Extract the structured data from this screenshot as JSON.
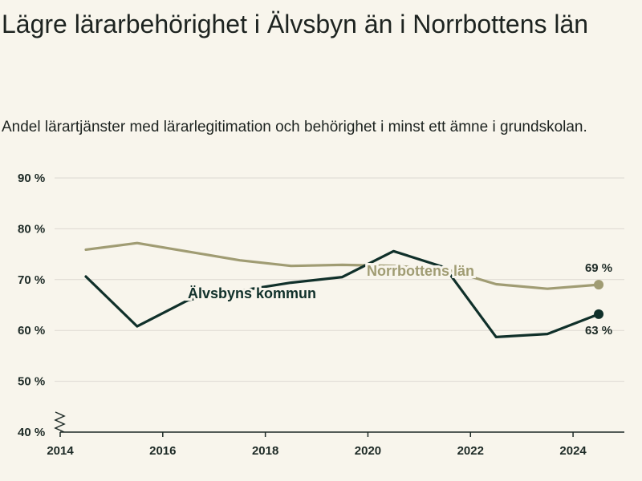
{
  "title": "Lägre lärarbehörighet i Älvsbyn än i Norrbottens län",
  "subtitle": "Andel lärartjänster med lärarlegitimation och behörighet i minst ett ämne i grundskolan.",
  "colors": {
    "background": "#f8f5ec",
    "alvsbyn": "#10302a",
    "norrbotten": "#a09c73",
    "grid": "#ddd9d2",
    "axis": "#1d2a26"
  },
  "chart_data": {
    "type": "line",
    "title": "Lägre lärarbehörighet i Älvsbyn än i Norrbottens län",
    "subtitle": "Andel lärartjänster med lärarlegitimation och behörighet i minst ett ämne i grundskolan.",
    "xlabel": "",
    "ylabel": "",
    "x": [
      2014.5,
      2015.5,
      2016.5,
      2017.5,
      2018.5,
      2019.5,
      2020.5,
      2021.5,
      2022.5,
      2023.5,
      2024.5
    ],
    "xlim": [
      2014,
      2025
    ],
    "ylim": [
      40,
      90
    ],
    "x_ticks": [
      "2014",
      "2016",
      "2018",
      "2020",
      "2022",
      "2024"
    ],
    "x_tick_values": [
      2014,
      2016,
      2018,
      2020,
      2022,
      2024
    ],
    "y_ticks": [
      "40 %",
      "50 %",
      "60 %",
      "70 %",
      "80 %",
      "90 %"
    ],
    "y_tick_values": [
      40,
      50,
      60,
      70,
      80,
      90
    ],
    "grid": true,
    "axis_break": true,
    "series": [
      {
        "name": "Norrbottens län",
        "values": [
          75.9,
          77.2,
          75.5,
          73.8,
          72.7,
          72.9,
          72.7,
          72.1,
          69.1,
          68.2,
          69.0
        ],
        "end_label": "69 %"
      },
      {
        "name": "Älvsbyns kommun",
        "values": [
          70.6,
          60.8,
          66.0,
          67.8,
          69.4,
          70.5,
          75.6,
          72.4,
          58.7,
          59.3,
          63.2
        ],
        "end_label": "63 %"
      }
    ]
  }
}
